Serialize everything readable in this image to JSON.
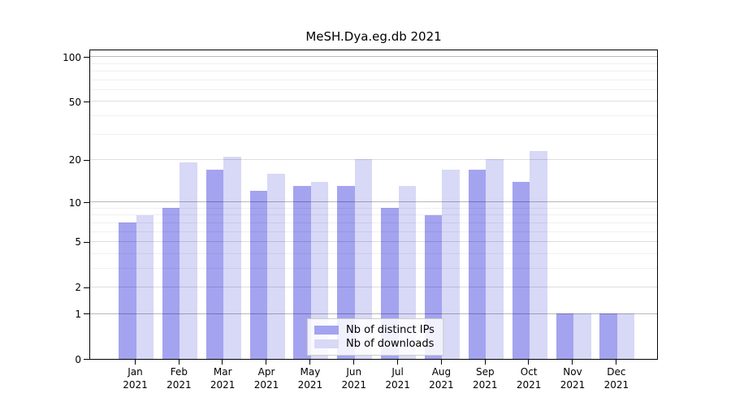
{
  "chart_data": {
    "type": "bar",
    "title": "MeSH.Dya.eg.db 2021",
    "year": "2021",
    "categories": [
      "Jan",
      "Feb",
      "Mar",
      "Apr",
      "May",
      "Jun",
      "Jul",
      "Aug",
      "Sep",
      "Oct",
      "Nov",
      "Dec"
    ],
    "series": [
      {
        "name": "Nb of distinct IPs",
        "color": "#a3a3f0",
        "values": [
          7,
          9,
          17,
          12,
          13,
          13,
          9,
          8,
          17,
          14,
          1,
          1
        ]
      },
      {
        "name": "Nb of downloads",
        "color": "#d8d8f7",
        "values": [
          8,
          19,
          21,
          16,
          14,
          20,
          13,
          17,
          20,
          23,
          1,
          1
        ]
      }
    ],
    "xlabel": "",
    "ylabel": "",
    "y_axis": {
      "scale": "log1p",
      "max_value": 113,
      "tick_values": [
        100,
        50,
        20,
        10,
        5,
        2,
        1,
        0
      ],
      "tick_labels": [
        "100",
        "50",
        "20",
        "10",
        "5",
        "2",
        "1",
        "0"
      ],
      "gridlines_power10": [
        1,
        10,
        100
      ],
      "gridlines_major": [
        2,
        5,
        20,
        50
      ],
      "gridlines_minor": [
        3,
        4,
        6,
        7,
        8,
        9,
        30,
        40,
        60,
        70,
        80,
        90
      ]
    },
    "grid": "on",
    "legend": {
      "position": "lower-center-inside",
      "entries": [
        "Nb of distinct IPs",
        "Nb of downloads"
      ]
    },
    "colors": {
      "grid_power10": "rgba(0,0,0,0.28)",
      "grid_major": "rgba(0,0,0,0.13)",
      "grid_minor": "rgba(0,0,0,0.06)",
      "spine": "#000000"
    }
  }
}
